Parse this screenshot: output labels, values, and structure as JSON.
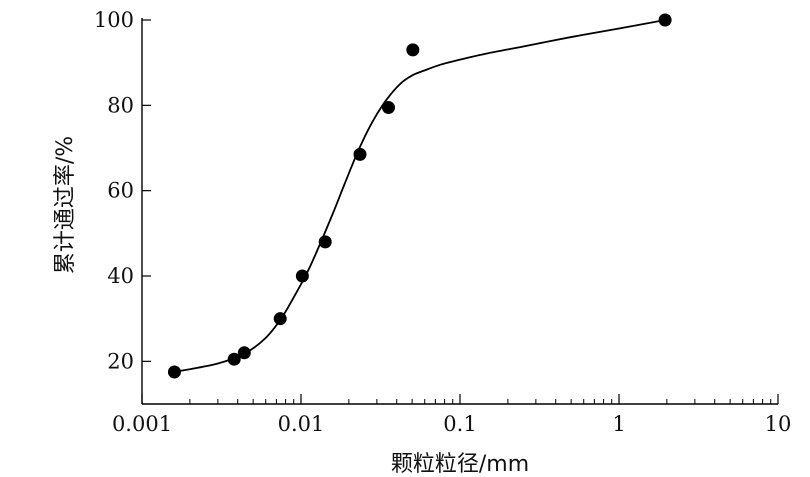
{
  "chart_data": {
    "type": "scatter",
    "title": "",
    "xlabel": "颗粒粒径/mm",
    "ylabel": "累计通过率/%",
    "x_scale": "log",
    "xlim": [
      0.001,
      10
    ],
    "ylim": [
      10,
      100
    ],
    "x_ticks": [
      0.001,
      0.01,
      0.1,
      1,
      10
    ],
    "x_tick_labels": [
      "0.001",
      "0.01",
      "0.1",
      "1",
      "10"
    ],
    "y_ticks": [
      20,
      40,
      60,
      80,
      100
    ],
    "y_tick_labels": [
      "20",
      "40",
      "60",
      "80",
      "100"
    ],
    "grid": false,
    "series": [
      {
        "type": "scatter",
        "x": [
          0.0016,
          0.0038,
          0.0044,
          0.0074,
          0.0102,
          0.0142,
          0.0235,
          0.0355,
          0.0505,
          1.95
        ],
        "y": [
          17.5,
          20.5,
          22,
          30,
          40,
          48,
          68.5,
          79.5,
          93,
          100
        ]
      },
      {
        "type": "line",
        "x": [
          0.0016,
          0.003,
          0.0045,
          0.006,
          0.0075,
          0.009,
          0.011,
          0.013,
          0.016,
          0.019,
          0.023,
          0.028,
          0.034,
          0.042,
          0.05,
          0.06,
          0.075,
          0.1,
          0.15,
          0.25,
          0.5,
          1.0,
          1.95
        ],
        "y": [
          17.5,
          19.5,
          22,
          25.5,
          30,
          35,
          41,
          47,
          55,
          62,
          69.5,
          76,
          81,
          85,
          87,
          88.2,
          89.5,
          90.7,
          92.2,
          93.8,
          96,
          98,
          100
        ]
      }
    ],
    "colors": {
      "marker": "#000000",
      "line": "#000000",
      "axis": "#000000"
    }
  }
}
